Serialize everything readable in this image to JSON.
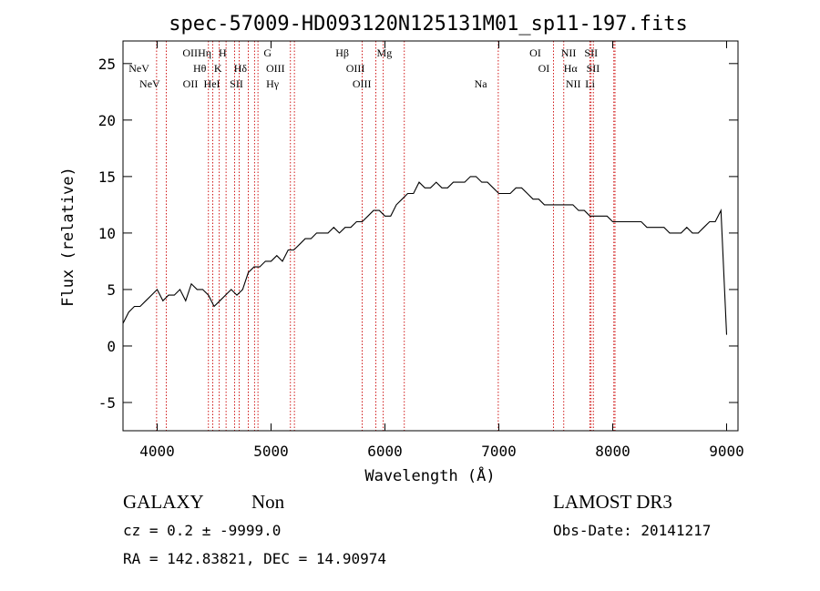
{
  "chart_data": {
    "type": "line",
    "title": "spec-57009-HD093120N125131M01_sp11-197.fits",
    "xlabel": "Wavelength (Å)",
    "ylabel": "Flux (relative)",
    "xlim": [
      3700,
      9100
    ],
    "ylim": [
      -7.5,
      27
    ],
    "xticks": [
      4000,
      5000,
      6000,
      7000,
      8000,
      9000
    ],
    "yticks": [
      -5,
      0,
      5,
      10,
      15,
      20,
      25
    ],
    "series": [
      {
        "name": "spectrum",
        "x": [
          3700,
          3750,
          3800,
          3850,
          3900,
          3950,
          4000,
          4050,
          4100,
          4150,
          4200,
          4250,
          4300,
          4350,
          4400,
          4450,
          4500,
          4550,
          4600,
          4650,
          4700,
          4750,
          4800,
          4850,
          4900,
          4950,
          5000,
          5050,
          5100,
          5150,
          5200,
          5250,
          5300,
          5350,
          5400,
          5450,
          5500,
          5550,
          5600,
          5650,
          5700,
          5750,
          5800,
          5850,
          5900,
          5950,
          6000,
          6050,
          6100,
          6150,
          6200,
          6250,
          6300,
          6350,
          6400,
          6450,
          6500,
          6550,
          6600,
          6650,
          6700,
          6750,
          6800,
          6850,
          6900,
          6950,
          7000,
          7050,
          7100,
          7150,
          7200,
          7250,
          7300,
          7350,
          7400,
          7450,
          7500,
          7550,
          7600,
          7650,
          7700,
          7750,
          7800,
          7850,
          7900,
          7950,
          8000,
          8050,
          8100,
          8150,
          8200,
          8250,
          8300,
          8350,
          8400,
          8450,
          8500,
          8550,
          8600,
          8650,
          8700,
          8750,
          8800,
          8850,
          8900,
          8950,
          9000
        ],
        "y": [
          2,
          3,
          3.5,
          3.5,
          4,
          4.5,
          5,
          4,
          4.5,
          4.5,
          5,
          4,
          5.5,
          5,
          5,
          4.5,
          3.5,
          4,
          4.5,
          5,
          4.5,
          5,
          6.5,
          7,
          7,
          7.5,
          7.5,
          8,
          7.5,
          8.5,
          8.5,
          9,
          9.5,
          9.5,
          10,
          10,
          10,
          10.5,
          10,
          10.5,
          10.5,
          11,
          11,
          11.5,
          12,
          12,
          11.5,
          11.5,
          12.5,
          13,
          13.5,
          13.5,
          14.5,
          14,
          14,
          14.5,
          14,
          14,
          14.5,
          14.5,
          14.5,
          15,
          15,
          14.5,
          14.5,
          14,
          13.5,
          13.5,
          13.5,
          14,
          14,
          13.5,
          13,
          13,
          12.5,
          12.5,
          12.5,
          12.5,
          12.5,
          12.5,
          12,
          12,
          11.5,
          11.5,
          11.5,
          11.5,
          11,
          11,
          11,
          11,
          11,
          11,
          10.5,
          10.5,
          10.5,
          10.5,
          10,
          10,
          10,
          10.5,
          10,
          10,
          10.5,
          11,
          11,
          12,
          1
        ]
      }
    ],
    "line_labels": [
      {
        "text": "NeV",
        "wavelength": 3426,
        "row": 3
      },
      {
        "text": "NeV",
        "wavelength": 3346,
        "row": 2
      },
      {
        "text": "OII",
        "wavelength": 3727,
        "row": 1
      },
      {
        "text": "OII",
        "wavelength": 3729,
        "row": 3
      },
      {
        "text": "Hη",
        "wavelength": 3835,
        "row": 1
      },
      {
        "text": "Hθ",
        "wavelength": 3798,
        "row": 2
      },
      {
        "text": "H",
        "wavelength": 3969,
        "row": 1
      },
      {
        "text": "K",
        "wavelength": 3934,
        "row": 2
      },
      {
        "text": "HeI",
        "wavelength": 3889,
        "row": 3
      },
      {
        "text": "Hδ",
        "wavelength": 4102,
        "row": 2
      },
      {
        "text": "SII",
        "wavelength": 4072,
        "row": 3
      },
      {
        "text": "G",
        "wavelength": 4304,
        "row": 1
      },
      {
        "text": "OIII",
        "wavelength": 4363,
        "row": 2
      },
      {
        "text": "Hγ",
        "wavelength": 4341,
        "row": 3
      },
      {
        "text": "Hβ",
        "wavelength": 4861,
        "row": 1
      },
      {
        "text": "OIII",
        "wavelength": 4959,
        "row": 2
      },
      {
        "text": "OIII",
        "wavelength": 5007,
        "row": 3
      },
      {
        "text": "Mg",
        "wavelength": 5175,
        "row": 1
      },
      {
        "text": "Na",
        "wavelength": 5893,
        "row": 3
      },
      {
        "text": "OI",
        "wavelength": 6300,
        "row": 1
      },
      {
        "text": "OI",
        "wavelength": 6364,
        "row": 2
      },
      {
        "text": "NII",
        "wavelength": 6548,
        "row": 1
      },
      {
        "text": "Hα",
        "wavelength": 6563,
        "row": 2
      },
      {
        "text": "NII",
        "wavelength": 6583,
        "row": 3
      },
      {
        "text": "SII",
        "wavelength": 6716,
        "row": 1
      },
      {
        "text": "SII",
        "wavelength": 6731,
        "row": 2
      },
      {
        "text": "Li",
        "wavelength": 6708,
        "row": 3
      }
    ],
    "line_positions_observed": [
      3995,
      4080,
      4450,
      4488,
      4545,
      4605,
      4680,
      4720,
      4800,
      4855,
      4885,
      5170,
      5205,
      5800,
      5920,
      5985,
      6170,
      6995,
      7480,
      7570,
      7800,
      7810,
      7830,
      8010,
      8020
    ]
  },
  "footer": {
    "class_label": "GALAXY",
    "subclass_label": "Non",
    "survey_label": "LAMOST DR3",
    "cz_text": "cz = 0.2 ± -9999.0",
    "obs_date_text": "Obs-Date: 20141217",
    "coords_text": "RA = 142.83821, DEC =  14.90974"
  }
}
